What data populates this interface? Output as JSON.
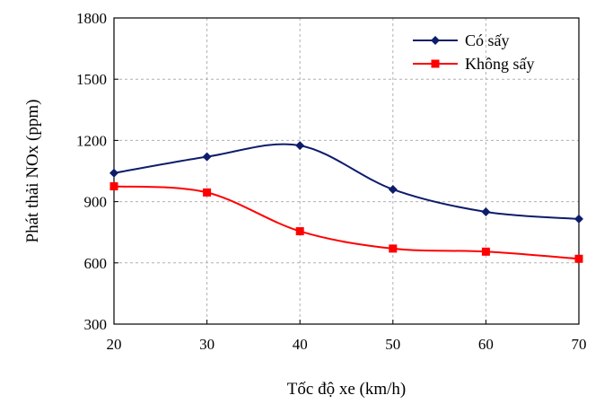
{
  "chart_data": {
    "type": "line",
    "x": [
      20,
      30,
      40,
      50,
      60,
      70
    ],
    "xlim": [
      20,
      70
    ],
    "ylim": [
      300,
      1800
    ],
    "xticks": [
      "20",
      "30",
      "40",
      "50",
      "60",
      "70"
    ],
    "yticks": [
      "300",
      "600",
      "900",
      "1200",
      "1500",
      "1800"
    ],
    "xlabel": "Tốc độ xe (km/h)",
    "ylabel": "Phát thải NOx (ppm)",
    "grid": "dashed",
    "legend_position": "top-right",
    "series": [
      {
        "name": "Có sấy",
        "values": [
          1040,
          1120,
          1175,
          960,
          850,
          815
        ],
        "color": "#0d1d6b",
        "marker": "diamond"
      },
      {
        "name": "Không sấy",
        "values": [
          975,
          945,
          755,
          670,
          655,
          620
        ],
        "color": "#ff0000",
        "marker": "square"
      }
    ]
  }
}
